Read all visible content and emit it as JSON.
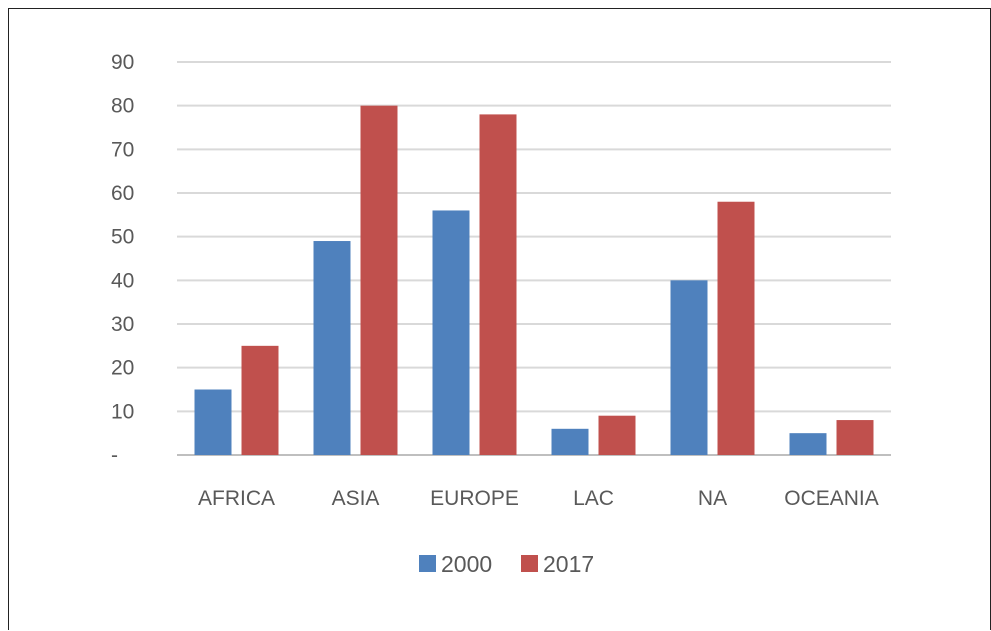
{
  "chart_data": {
    "type": "bar",
    "categories": [
      "AFRICA",
      "ASIA",
      "EUROPE",
      "LAC",
      "NA",
      "OCEANIA"
    ],
    "series": [
      {
        "name": "2000",
        "values": [
          15,
          49,
          56,
          6,
          40,
          5
        ],
        "color": "#4f81bd"
      },
      {
        "name": "2017",
        "values": [
          25,
          80,
          78,
          9,
          58,
          8
        ],
        "color": "#c0504d"
      }
    ],
    "ylim": [
      0,
      90
    ],
    "yticks": [
      {
        "value": 0,
        "label": "-"
      },
      {
        "value": 10,
        "label": "10"
      },
      {
        "value": 20,
        "label": "20"
      },
      {
        "value": 30,
        "label": "30"
      },
      {
        "value": 40,
        "label": "40"
      },
      {
        "value": 50,
        "label": "50"
      },
      {
        "value": 60,
        "label": "60"
      },
      {
        "value": 70,
        "label": "70"
      },
      {
        "value": 80,
        "label": "80"
      },
      {
        "value": 90,
        "label": "90"
      }
    ],
    "grid": true,
    "legend_position": "bottom-center",
    "gridline_color": "#d9d9d9",
    "axis_color": "#bfbfbf",
    "text_color": "#595959"
  }
}
